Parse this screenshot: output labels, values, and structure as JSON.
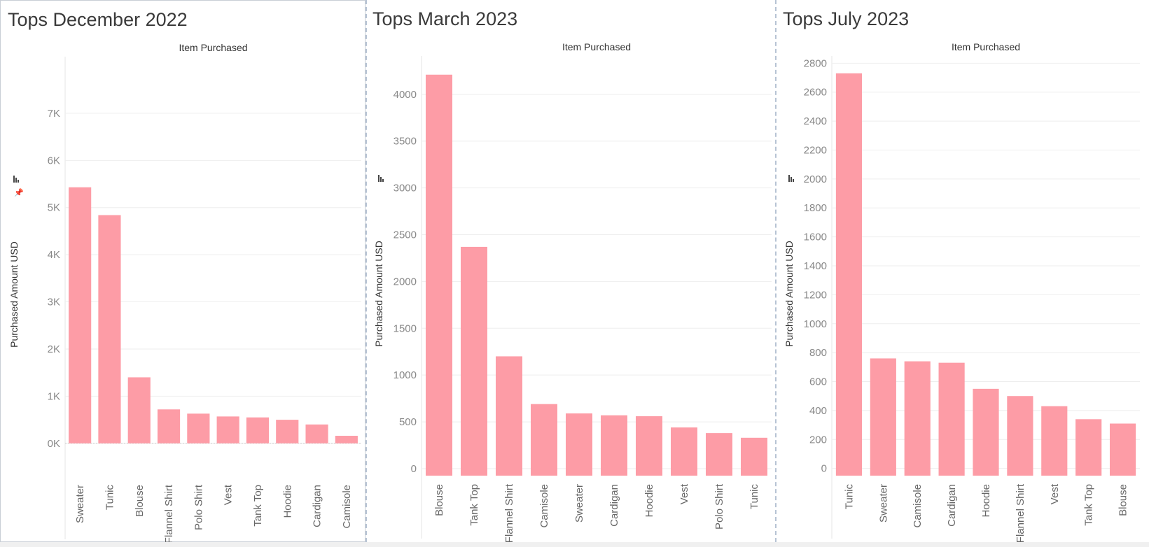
{
  "colors": {
    "bar": "#fd9ca6",
    "grid": "#eeeeee",
    "axis_text": "#888888"
  },
  "panels": [
    {
      "title": "Tops December 2022"
    },
    {
      "title": "Tops March 2023"
    },
    {
      "title": "Tops July 2023"
    }
  ],
  "chart_data": [
    {
      "type": "bar",
      "title": "Tops December 2022",
      "xlabel": "Item Purchased",
      "ylabel": "Purchased Amount USD",
      "categories": [
        "Sweater",
        "Tunic",
        "Blouse",
        "Flannel Shirt",
        "Polo Shirt",
        "Vest",
        "Tank Top",
        "Hoodie",
        "Cardigan",
        "Camisole"
      ],
      "values": [
        5430,
        4840,
        1400,
        720,
        630,
        570,
        550,
        500,
        400,
        160
      ],
      "ylim": [
        -700,
        8200
      ],
      "ticks": [
        0,
        1000,
        2000,
        3000,
        4000,
        5000,
        6000,
        7000
      ],
      "tick_labels": [
        "0K",
        "1K",
        "2K",
        "3K",
        "4K",
        "5K",
        "6K",
        "7K"
      ],
      "grid": true
    },
    {
      "type": "bar",
      "title": "Tops March 2023",
      "xlabel": "Item Purchased",
      "ylabel": "Purchased Amount USD",
      "categories": [
        "Blouse",
        "Tank Top",
        "Flannel Shirt",
        "Camisole",
        "Sweater",
        "Cardigan",
        "Hoodie",
        "Vest",
        "Polo Shirt",
        "Tunic"
      ],
      "values": [
        4210,
        2370,
        1200,
        690,
        590,
        570,
        560,
        440,
        380,
        330
      ],
      "ylim": [
        -75,
        4410
      ],
      "ticks": [
        0,
        500,
        1000,
        1500,
        2000,
        2500,
        3000,
        3500,
        4000
      ],
      "tick_labels": [
        "0",
        "500",
        "1000",
        "1500",
        "2000",
        "2500",
        "3000",
        "3500",
        "4000"
      ],
      "grid": true
    },
    {
      "type": "bar",
      "title": "Tops July 2023",
      "xlabel": "Item Purchased",
      "ylabel": "Purchased Amount USD",
      "categories": [
        "Tunic",
        "Sweater",
        "Camisole",
        "Cardigan",
        "Hoodie",
        "Flannel Shirt",
        "Vest",
        "Tank Top",
        "Blouse"
      ],
      "values": [
        2730,
        760,
        740,
        730,
        550,
        500,
        430,
        340,
        310
      ],
      "ylim": [
        -50,
        2850
      ],
      "ticks": [
        0,
        200,
        400,
        600,
        800,
        1000,
        1200,
        1400,
        1600,
        1800,
        2000,
        2200,
        2400,
        2600,
        2800
      ],
      "tick_labels": [
        "0",
        "200",
        "400",
        "600",
        "800",
        "1000",
        "1200",
        "1400",
        "1600",
        "1800",
        "2000",
        "2200",
        "2400",
        "2600",
        "2800"
      ],
      "grid": true
    }
  ]
}
